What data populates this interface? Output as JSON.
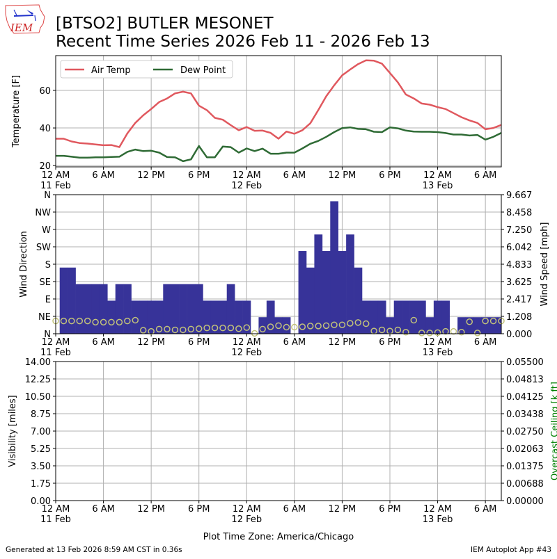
{
  "header": {
    "logo_text": "IEM",
    "title_line1": "[BTSO2] BUTLER MESONET",
    "title_line2": "Recent Time Series 2026 Feb 11 - 2026 Feb 13"
  },
  "footer": {
    "generated": "Generated at 13 Feb 2026 8:59 AM CST in 0.36s",
    "app": "IEM Autoplot App #43",
    "timezone": "Plot Time Zone: America/Chicago"
  },
  "colors": {
    "air_temp": "#e0585e",
    "dew_point": "#2f6b35",
    "wind_bar": "#373399",
    "wind_dir": "#c2c27a",
    "ceiling_label": "#008000"
  },
  "chart_data": [
    {
      "type": "line",
      "title": "",
      "xlabel": "",
      "ylabel": "Temperature [F]",
      "x_unit": "hours since 12 AM 11 Feb",
      "xlim": [
        0,
        56
      ],
      "ylim": [
        19.3,
        78.5
      ],
      "yticks": [
        20,
        40,
        60
      ],
      "xticks": [
        {
          "h": 0,
          "label": "12 AM",
          "date": "11 Feb"
        },
        {
          "h": 6,
          "label": "6 AM"
        },
        {
          "h": 12,
          "label": "12 PM"
        },
        {
          "h": 18,
          "label": "6 PM"
        },
        {
          "h": 24,
          "label": "12 AM",
          "date": "12 Feb"
        },
        {
          "h": 30,
          "label": "6 AM"
        },
        {
          "h": 36,
          "label": "12 PM"
        },
        {
          "h": 42,
          "label": "6 PM"
        },
        {
          "h": 48,
          "label": "12 AM",
          "date": "13 Feb"
        },
        {
          "h": 54,
          "label": "6 AM"
        }
      ],
      "grid": true,
      "legend": "top-left",
      "series": [
        {
          "name": "Air Temp",
          "values": [
            34.3,
            34.3,
            32.8,
            32,
            31.7,
            31.2,
            30.8,
            30.9,
            29.8,
            37.1,
            42.7,
            46.7,
            50.1,
            53.8,
            55.7,
            58.4,
            59.3,
            58.4,
            51.9,
            49.5,
            45.4,
            44.4,
            41.5,
            38.8,
            40.5,
            38.5,
            38.6,
            37.4,
            34.3,
            38.1,
            36.9,
            38.8,
            42.5,
            49.5,
            56.9,
            62.7,
            68,
            71.1,
            74,
            76,
            75.8,
            74.2,
            69.3,
            64.3,
            57.8,
            55.7,
            53,
            52.4,
            51.1,
            50.1,
            47.9,
            45.7,
            44,
            42.7,
            39.3,
            40,
            41.6
          ]
        },
        {
          "name": "Dew Point",
          "values": [
            25.2,
            25.2,
            24.7,
            24.2,
            24.2,
            24.4,
            24.4,
            24.6,
            24.7,
            27.3,
            28.5,
            27.7,
            27.9,
            26.9,
            24.5,
            24.4,
            22.3,
            23.3,
            30.4,
            24.4,
            24.4,
            30.1,
            29.8,
            26.9,
            29.1,
            27.7,
            29,
            26.3,
            26.3,
            26.9,
            26.9,
            29.1,
            31.6,
            33.1,
            35.3,
            37.8,
            39.9,
            40.3,
            39.5,
            39.3,
            38,
            37.8,
            40.3,
            39.8,
            38.6,
            38.1,
            38,
            38,
            37.8,
            37.3,
            36.5,
            36.5,
            36,
            36.3,
            33.8,
            35.3,
            37.4
          ]
        }
      ]
    },
    {
      "type": "bar",
      "title": "",
      "ylabel": "Wind Direction",
      "y2label": "Wind Speed [mph]",
      "xlim": [
        0,
        56
      ],
      "ylim": [
        0,
        360
      ],
      "y2lim": [
        0,
        9.667
      ],
      "yticks": [
        {
          "v": 0,
          "label": "N"
        },
        {
          "v": 45,
          "label": "NE"
        },
        {
          "v": 90,
          "label": "E"
        },
        {
          "v": 135,
          "label": "SE"
        },
        {
          "v": 180,
          "label": "S"
        },
        {
          "v": 225,
          "label": "SW"
        },
        {
          "v": 270,
          "label": "W"
        },
        {
          "v": 315,
          "label": "NW"
        },
        {
          "v": 360,
          "label": "N"
        }
      ],
      "y2ticks": [
        "0.000",
        "1.208",
        "2.417",
        "3.625",
        "4.833",
        "6.042",
        "7.250",
        "8.458",
        "9.667"
      ],
      "grid": true,
      "series": [
        {
          "name": "Wind Speed",
          "kind": "bar",
          "values": [
            0,
            4.6,
            4.6,
            3.45,
            3.45,
            3.45,
            3.45,
            2.3,
            3.45,
            3.45,
            2.3,
            2.3,
            2.3,
            2.3,
            3.45,
            3.45,
            3.45,
            3.45,
            3.45,
            2.3,
            2.3,
            2.3,
            3.45,
            2.3,
            2.3,
            0,
            1.15,
            2.3,
            1.15,
            1.15,
            0,
            5.75,
            4.6,
            6.9,
            5.75,
            9.21,
            5.75,
            6.9,
            4.6,
            2.3,
            2.3,
            2.3,
            1.15,
            2.3,
            2.3,
            2.3,
            2.3,
            1.15,
            2.3,
            2.3,
            0,
            1.15,
            1.15,
            1.15,
            1.15,
            1.15,
            1.15
          ]
        },
        {
          "name": "Wind Direction",
          "kind": "scatter",
          "values": [
            33,
            33,
            33,
            33,
            33,
            30,
            30,
            30,
            30,
            33,
            35,
            9,
            6,
            12,
            12,
            10,
            10,
            12,
            13,
            15,
            15,
            15,
            15,
            13,
            16,
            1,
            12,
            18,
            21,
            17,
            17,
            18,
            20,
            20,
            21,
            23,
            23,
            27,
            29,
            26,
            7,
            10,
            7,
            10,
            4,
            35,
            2,
            2,
            3,
            6,
            6,
            4,
            31,
            2,
            33,
            33,
            33
          ]
        }
      ]
    },
    {
      "type": "line",
      "title": "",
      "xlabel": "Plot Time Zone: America/Chicago",
      "ylabel": "Visibility [miles]",
      "y2label": "Overcast Ceiling [k ft]",
      "xlim": [
        0,
        56
      ],
      "ylim": [
        0,
        14
      ],
      "y2lim": [
        0,
        0.055
      ],
      "yticks": [
        "0.00",
        "1.75",
        "3.50",
        "5.25",
        "7.00",
        "8.75",
        "10.50",
        "12.25",
        "14.00"
      ],
      "y2ticks": [
        "0.00000",
        "0.00688",
        "0.01375",
        "0.02063",
        "0.02750",
        "0.03438",
        "0.04125",
        "0.04813",
        "0.05500"
      ],
      "grid": true,
      "series": []
    }
  ]
}
